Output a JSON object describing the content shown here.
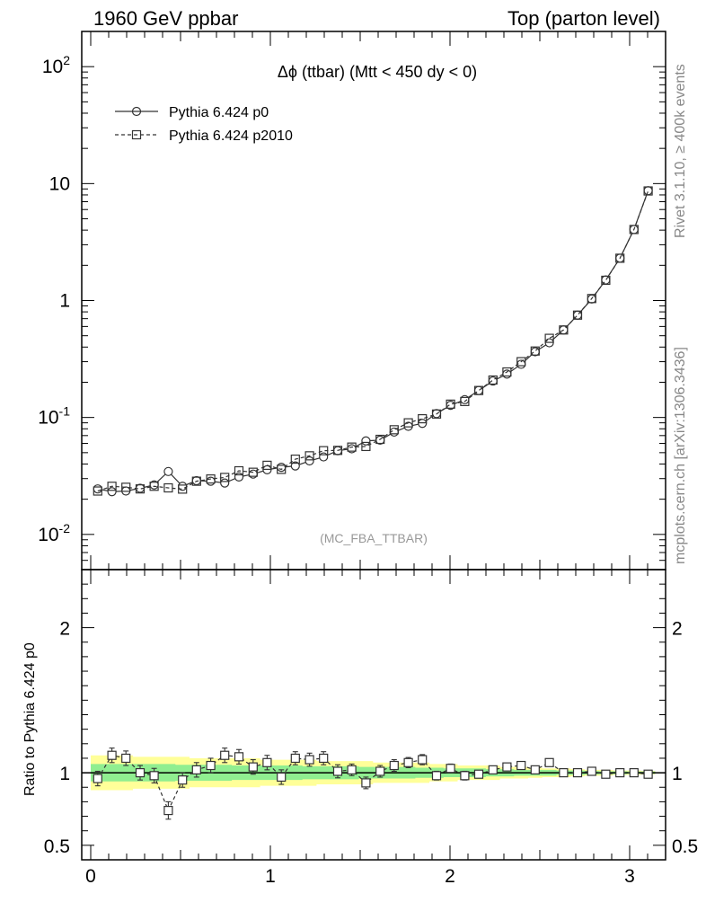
{
  "header": {
    "left": "1960 GeV ppbar",
    "right": "Top (parton level)"
  },
  "side": {
    "rivet": "Rivet 3.1.10, ≥ 400k events",
    "mcplots": "mcplots.cern.ch [arXiv:1306.3436]"
  },
  "chart_data": [
    {
      "type": "line",
      "title": "Δϕ (ttbar) (Mtt < 450 dy < 0)",
      "analysis_tag": "(MC_FBA_TTBAR)",
      "xlim": [
        -0.05,
        3.2
      ],
      "ylim": [
        0.005,
        200
      ],
      "yscale": "log",
      "ytick_labels": [
        "10^-2",
        "10^-1",
        "1",
        "10",
        "10^2"
      ],
      "xtick_labels": [
        "0",
        "1",
        "2",
        "3"
      ],
      "legend_position": "top-left",
      "x": [
        0.039,
        0.118,
        0.196,
        0.275,
        0.353,
        0.432,
        0.511,
        0.589,
        0.668,
        0.746,
        0.825,
        0.904,
        0.982,
        1.061,
        1.139,
        1.218,
        1.296,
        1.375,
        1.453,
        1.532,
        1.611,
        1.689,
        1.768,
        1.846,
        1.925,
        2.003,
        2.082,
        2.16,
        2.239,
        2.317,
        2.396,
        2.474,
        2.553,
        2.632,
        2.71,
        2.789,
        2.867,
        2.946,
        3.024,
        3.103
      ],
      "series": [
        {
          "name": "Pythia 6.424 p0",
          "marker": "circle",
          "line": "solid",
          "values": [
            0.0245,
            0.0232,
            0.0235,
            0.0248,
            0.0265,
            0.0345,
            0.0258,
            0.0288,
            0.0285,
            0.0275,
            0.031,
            0.0328,
            0.0357,
            0.0375,
            0.0385,
            0.0425,
            0.046,
            0.052,
            0.054,
            0.063,
            0.064,
            0.075,
            0.084,
            0.089,
            0.108,
            0.127,
            0.142,
            0.17,
            0.205,
            0.235,
            0.285,
            0.365,
            0.435,
            0.56,
            0.75,
            1.03,
            1.5,
            2.3,
            4.05,
            8.7
          ]
        },
        {
          "name": "Pythia 6.424 p2010",
          "marker": "square",
          "line": "dashed",
          "values": [
            0.0235,
            0.0258,
            0.0253,
            0.0245,
            0.0258,
            0.025,
            0.0244,
            0.0285,
            0.0298,
            0.0307,
            0.035,
            0.034,
            0.039,
            0.036,
            0.044,
            0.047,
            0.052,
            0.0523,
            0.0558,
            0.0565,
            0.065,
            0.0785,
            0.09,
            0.0975,
            0.107,
            0.13,
            0.137,
            0.17,
            0.209,
            0.245,
            0.3,
            0.37,
            0.475,
            0.56,
            0.75,
            1.04,
            1.49,
            2.3,
            4.05,
            8.65
          ]
        }
      ]
    },
    {
      "type": "line",
      "ylabel": "Ratio to Pythia 6.424 p0",
      "ylim": [
        0.4,
        2.4
      ],
      "ytick_labels": [
        "0.5",
        "1",
        "2"
      ],
      "xtick_labels": [
        "0",
        "1",
        "2",
        "3"
      ],
      "x": [
        0.039,
        0.118,
        0.196,
        0.275,
        0.353,
        0.432,
        0.511,
        0.589,
        0.668,
        0.746,
        0.825,
        0.904,
        0.982,
        1.061,
        1.139,
        1.218,
        1.296,
        1.375,
        1.453,
        1.532,
        1.611,
        1.689,
        1.768,
        1.846,
        1.925,
        2.003,
        2.082,
        2.16,
        2.239,
        2.317,
        2.396,
        2.474,
        2.553,
        2.632,
        2.71,
        2.789,
        2.867,
        2.946,
        3.024,
        3.103
      ],
      "reference_band_green_halfwidth": [
        0.06,
        0.06,
        0.06,
        0.06,
        0.06,
        0.06,
        0.055,
        0.055,
        0.055,
        0.055,
        0.05,
        0.05,
        0.05,
        0.05,
        0.05,
        0.045,
        0.045,
        0.045,
        0.045,
        0.04,
        0.04,
        0.04,
        0.04,
        0.035,
        0.035,
        0.03,
        0.03,
        0.03,
        0.025,
        0.025,
        0.02,
        0.02,
        0.02,
        0.015,
        0.015,
        0.012,
        0.01,
        0.01,
        0.008,
        0.008
      ],
      "reference_band_yellow_halfwidth": [
        0.12,
        0.12,
        0.12,
        0.11,
        0.11,
        0.11,
        0.11,
        0.1,
        0.1,
        0.1,
        0.1,
        0.1,
        0.09,
        0.09,
        0.09,
        0.09,
        0.08,
        0.08,
        0.08,
        0.08,
        0.07,
        0.07,
        0.07,
        0.07,
        0.06,
        0.06,
        0.05,
        0.05,
        0.05,
        0.04,
        0.04,
        0.035,
        0.03,
        0.03,
        0.025,
        0.02,
        0.02,
        0.015,
        0.015,
        0.012
      ],
      "series": [
        {
          "name": "Pythia 6.424 p2010",
          "marker": "square",
          "line": "dashed",
          "values": [
            0.96,
            1.12,
            1.1,
            1.0,
            0.98,
            0.74,
            0.95,
            1.02,
            1.05,
            1.12,
            1.11,
            1.04,
            1.07,
            0.97,
            1.1,
            1.09,
            1.1,
            1.01,
            1.02,
            0.93,
            1.01,
            1.05,
            1.07,
            1.09,
            0.98,
            1.03,
            0.98,
            0.99,
            1.02,
            1.04,
            1.05,
            1.02,
            1.07,
            1.0,
            1.0,
            1.01,
            0.99,
            1.0,
            1.0,
            0.99
          ],
          "errors": [
            0.05,
            0.05,
            0.05,
            0.05,
            0.05,
            0.06,
            0.05,
            0.05,
            0.05,
            0.05,
            0.05,
            0.05,
            0.05,
            0.05,
            0.045,
            0.045,
            0.045,
            0.045,
            0.04,
            0.04,
            0.04,
            0.04,
            0.035,
            0.035,
            0.03,
            0.03,
            0.03,
            0.025,
            0.02,
            0.02,
            0.015,
            0.012,
            0.01,
            0.008,
            0.008,
            0.007,
            0.006,
            0.006,
            0.005,
            0.005
          ]
        }
      ]
    }
  ]
}
